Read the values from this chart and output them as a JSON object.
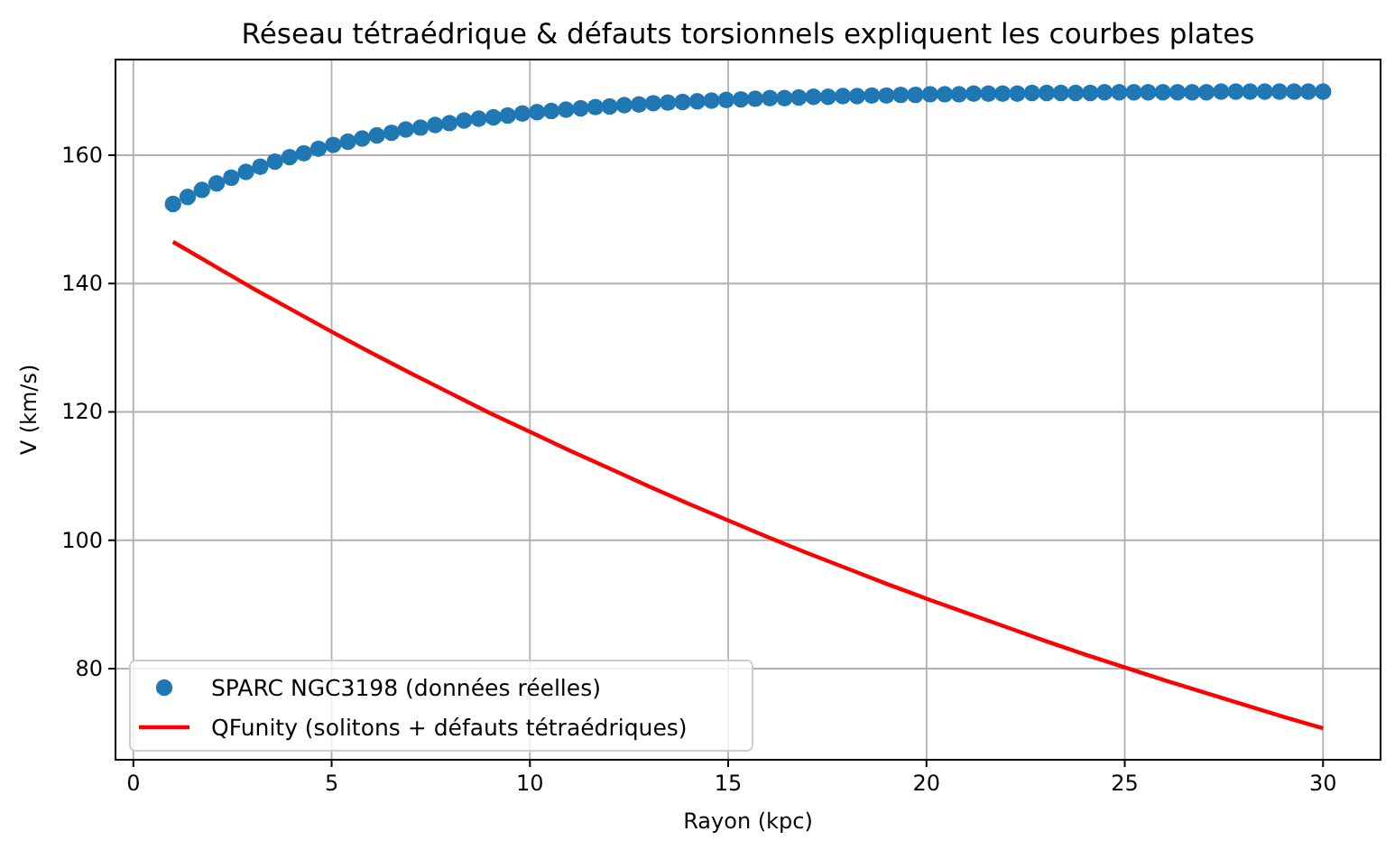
{
  "chart_data": {
    "type": "scatter",
    "title": "Réseau tétraédrique & défauts torsionnels expliquent les courbes plates",
    "xlabel": "Rayon (kpc)",
    "ylabel": "V (km/s)",
    "xlim": [
      -0.45,
      31.45
    ],
    "ylim": [
      65.8,
      174.9
    ],
    "xticks": [
      0,
      5,
      10,
      15,
      20,
      25,
      30
    ],
    "yticks": [
      80,
      100,
      120,
      140,
      160
    ],
    "grid": true,
    "legend": "bottom left",
    "series": [
      {
        "name": "SPARC NGC3198 (données réelles)",
        "marker": "circle",
        "color": "#1f77b4",
        "x": [
          1.0,
          1.37,
          1.73,
          2.1,
          2.47,
          2.84,
          3.2,
          3.57,
          3.94,
          4.3,
          4.67,
          5.04,
          5.41,
          5.77,
          6.14,
          6.51,
          6.87,
          7.24,
          7.61,
          7.97,
          8.34,
          8.71,
          9.08,
          9.44,
          9.81,
          10.18,
          10.54,
          10.91,
          11.28,
          11.65,
          12.01,
          12.38,
          12.75,
          13.11,
          13.48,
          13.85,
          14.22,
          14.58,
          14.95,
          15.32,
          15.68,
          16.05,
          16.42,
          16.78,
          17.15,
          17.52,
          17.89,
          18.25,
          18.62,
          18.99,
          19.35,
          19.72,
          20.09,
          20.46,
          20.82,
          21.19,
          21.56,
          21.92,
          22.29,
          22.66,
          23.03,
          23.39,
          23.76,
          24.13,
          24.49,
          24.86,
          25.23,
          25.59,
          25.96,
          26.33,
          26.7,
          27.06,
          27.43,
          27.8,
          28.16,
          28.53,
          28.9,
          29.27,
          29.63,
          30.0
        ],
        "values": [
          152.4,
          153.5,
          154.6,
          155.6,
          156.5,
          157.4,
          158.2,
          159.0,
          159.7,
          160.3,
          161.0,
          161.6,
          162.1,
          162.6,
          163.1,
          163.5,
          164.0,
          164.3,
          164.7,
          165.0,
          165.4,
          165.7,
          165.9,
          166.2,
          166.5,
          166.7,
          166.9,
          167.1,
          167.3,
          167.5,
          167.6,
          167.8,
          167.9,
          168.1,
          168.2,
          168.3,
          168.4,
          168.5,
          168.6,
          168.7,
          168.8,
          168.9,
          168.9,
          169.0,
          169.1,
          169.1,
          169.2,
          169.2,
          169.3,
          169.3,
          169.4,
          169.4,
          169.5,
          169.5,
          169.5,
          169.6,
          169.6,
          169.6,
          169.6,
          169.7,
          169.7,
          169.7,
          169.7,
          169.7,
          169.8,
          169.8,
          169.8,
          169.8,
          169.8,
          169.8,
          169.8,
          169.8,
          169.9,
          169.9,
          169.9,
          169.9,
          169.9,
          169.9,
          169.9,
          169.9
        ]
      },
      {
        "name": "QFunity (solitons + défauts tétraédriques)",
        "type": "line",
        "color": "#ff0000",
        "line_style": "solid",
        "x": [
          1,
          2,
          3,
          4,
          5,
          6,
          7,
          8,
          9,
          10,
          11,
          12,
          13,
          14,
          15,
          16,
          17,
          18,
          19,
          20,
          21,
          22,
          23,
          24,
          25,
          26,
          27,
          28,
          29,
          30
        ],
        "values": [
          146.5,
          142.9,
          139.3,
          135.9,
          132.5,
          129.2,
          126.0,
          122.9,
          119.8,
          116.9,
          114.0,
          111.2,
          108.4,
          105.7,
          103.1,
          100.5,
          98.0,
          95.6,
          93.2,
          90.9,
          88.7,
          86.5,
          84.3,
          82.2,
          80.2,
          78.2,
          76.3,
          74.4,
          72.5,
          70.7
        ]
      }
    ]
  }
}
